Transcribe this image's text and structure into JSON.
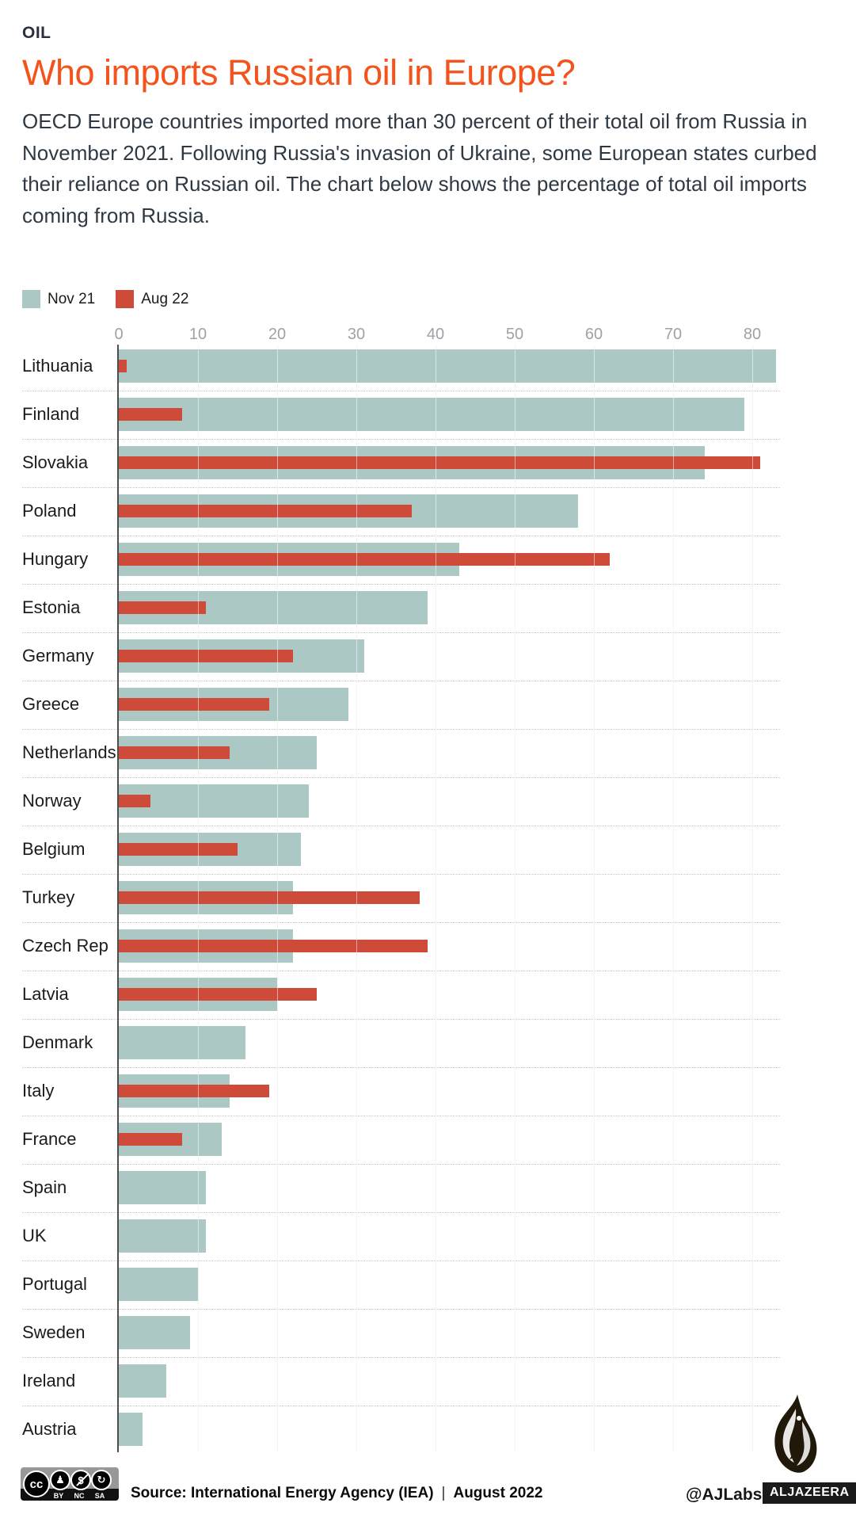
{
  "kicker": "OIL",
  "title": "Who imports Russian oil in Europe?",
  "intro": "OECD Europe countries imported more than 30 percent of their total oil from Russia in November 2021. Following Russia's invasion of Ukraine, some European states curbed their reliance on Russian oil. The chart below shows the percentage of total oil imports coming from Russia.",
  "colors": {
    "accent_orange": "#F4531C",
    "nov21_teal": "#ACC8C4",
    "aug22_red": "#CE4B3A",
    "text_dark": "#2E3944",
    "tick_gray": "#9EA2A5"
  },
  "legend": [
    {
      "label": "Nov 21",
      "color": "#ACC8C4"
    },
    {
      "label": "Aug 22",
      "color": "#CE4B3A"
    }
  ],
  "chart_data": {
    "type": "bar",
    "orientation": "horizontal",
    "title": "Percentage of total oil imports coming from Russia",
    "xlabel": "",
    "ylabel": "",
    "xlim": [
      0,
      85
    ],
    "ticks": [
      0,
      10,
      20,
      30,
      40,
      50,
      60,
      70,
      80
    ],
    "grid": true,
    "legend_position": "top-left",
    "categories": [
      "Lithuania",
      "Finland",
      "Slovakia",
      "Poland",
      "Hungary",
      "Estonia",
      "Germany",
      "Greece",
      "Netherlands",
      "Norway",
      "Belgium",
      "Turkey",
      "Czech Rep",
      "Latvia",
      "Denmark",
      "Italy",
      "France",
      "Spain",
      "UK",
      "Portugal",
      "Sweden",
      "Ireland",
      "Austria"
    ],
    "series": [
      {
        "name": "Nov 21",
        "values": [
          83,
          79,
          74,
          58,
          43,
          39,
          31,
          29,
          25,
          24,
          23,
          22,
          22,
          20,
          16,
          14,
          13,
          11,
          11,
          10,
          9,
          6,
          3
        ]
      },
      {
        "name": "Aug 22",
        "values": [
          1,
          8,
          81,
          37,
          62,
          11,
          22,
          19,
          14,
          4,
          15,
          38,
          39,
          25,
          null,
          19,
          8,
          null,
          null,
          null,
          null,
          null,
          null
        ]
      }
    ]
  },
  "footer": {
    "cc_labels": [
      "BY",
      "NC",
      "SA"
    ],
    "source": "Source: International Energy Agency (IEA)",
    "divider": "|",
    "date": "August 2022",
    "handle": "@AJLabs",
    "brand": "ALJAZEERA"
  }
}
